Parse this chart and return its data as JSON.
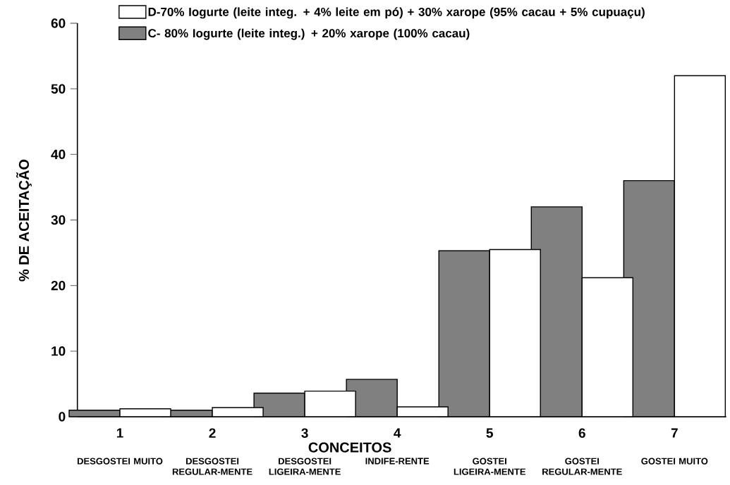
{
  "chart_data": {
    "type": "bar",
    "xlabel": "CONCEITOS",
    "ylabel": "% DE ACEITAÇÃO",
    "categories": [
      "1",
      "2",
      "3",
      "4",
      "5",
      "6",
      "7"
    ],
    "series": [
      {
        "name": "C- 80% Iogurte (leite integ.) + 20% xarope (100% cacau)",
        "color": "#808080",
        "values": [
          1,
          1,
          3.6,
          5.7,
          25.3,
          32,
          36
        ]
      },
      {
        "name": "D-70% Iogurte (leite integ. + 4% leite em pó) + 30% xarope (95% cacau + 5% cupuaçu)",
        "color": "#ffffff",
        "values": [
          1.2,
          1.4,
          3.9,
          1.5,
          25.5,
          21.2,
          52
        ]
      }
    ],
    "ylim": [
      0,
      60
    ],
    "yticks": [
      0,
      10,
      20,
      30,
      40,
      50,
      60
    ],
    "legend": "top",
    "annotations": [
      "DESGOSTEI MUITO",
      "DESGOSTEI REGULAR-MENTE",
      "DESGOSTEI LIGEIRA-MENTE",
      "INDIFE-RENTE",
      "GOSTEI LIGEIRA-MENTE",
      "GOSTEI REGULAR-MENTE",
      "GOSTEI MUITO"
    ]
  }
}
